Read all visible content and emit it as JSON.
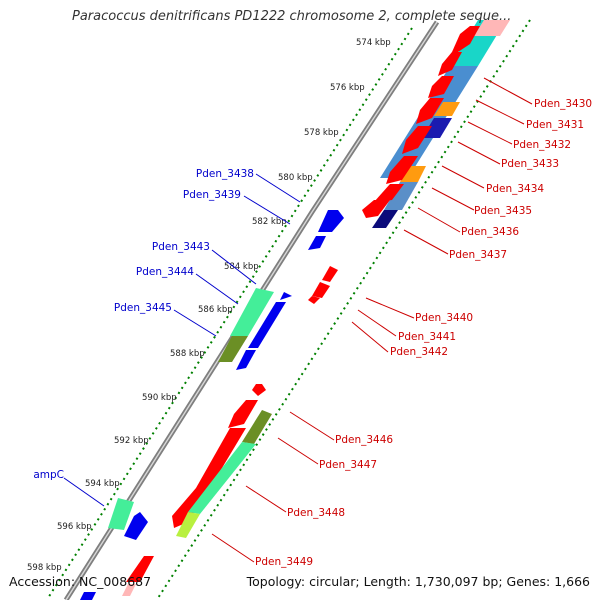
{
  "title": "Paracoccus denitrificans PD1222 chromosome 2, complete seque...",
  "footer": {
    "accession": "Accession: NC_008687",
    "topology": "Topology: circular; Length: 1,730,097 bp; Genes: 1,666"
  },
  "colors": {
    "forward_gene": "#0000ee",
    "reverse_gene": "#ff0000",
    "backbone": "#8c8c8c",
    "tick": "#008000",
    "label_forward": "#0000cc",
    "label_reverse": "#cc0000"
  },
  "ticks": [
    "574 kbp",
    "576 kbp",
    "578 kbp",
    "580 kbp",
    "582 kbp",
    "584 kbp",
    "586 kbp",
    "588 kbp",
    "590 kbp",
    "592 kbp",
    "594 kbp",
    "596 kbp",
    "598 kbp"
  ],
  "forward_labels": [
    "Pden_3438",
    "Pden_3439",
    "Pden_3443",
    "Pden_3444",
    "Pden_3445",
    "ampC"
  ],
  "reverse_labels": [
    "Pden_3430",
    "Pden_3431",
    "Pden_3432",
    "Pden_3433",
    "Pden_3434",
    "Pden_3435",
    "Pden_3436",
    "Pden_3437",
    "Pden_3440",
    "Pden_3441",
    "Pden_3442",
    "Pden_3446",
    "Pden_3447",
    "Pden_3448",
    "Pden_3449"
  ]
}
